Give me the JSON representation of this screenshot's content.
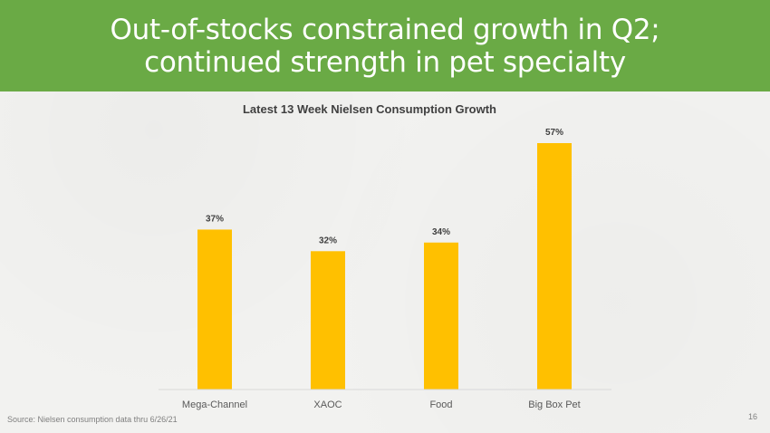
{
  "slide": {
    "title": "Out-of-stocks constrained growth in Q2; continued strength in pet specialty",
    "source": "Source:  Nielsen consumption data thru 6/26/21",
    "page_number": "16"
  },
  "colors": {
    "header": "#6aaa45",
    "bar": "#ffc000"
  },
  "chart_data": {
    "type": "bar",
    "title": "Latest 13 Week Nielsen Consumption Growth",
    "categories": [
      "Mega-Channel",
      "XAOC",
      "Food",
      "Big Box Pet"
    ],
    "values": [
      37,
      32,
      34,
      57
    ],
    "value_labels": [
      "37%",
      "32%",
      "34%",
      "57%"
    ],
    "xlabel": "",
    "ylabel": "",
    "ylim": [
      0,
      60
    ],
    "grid": false,
    "legend": "none"
  }
}
